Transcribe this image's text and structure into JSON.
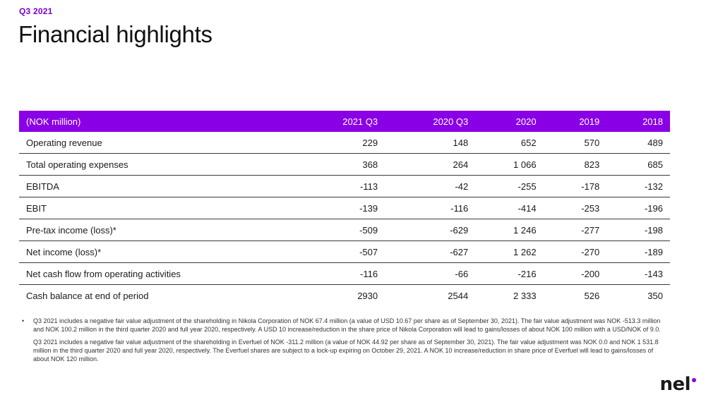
{
  "header": {
    "eyebrow": "Q3 2021",
    "title": "Financial highlights"
  },
  "table": {
    "columns": [
      "(NOK million)",
      "2021 Q3",
      "2020 Q3",
      "2020",
      "2019",
      "2018"
    ],
    "rows": [
      {
        "label": "Operating revenue",
        "values": [
          "229",
          "148",
          "652",
          "570",
          "489"
        ]
      },
      {
        "label": "Total operating expenses",
        "values": [
          "368",
          "264",
          "1 066",
          "823",
          "685"
        ]
      },
      {
        "label": "EBITDA",
        "values": [
          "-113",
          "-42",
          "-255",
          "-178",
          "-132"
        ]
      },
      {
        "label": "EBIT",
        "values": [
          "-139",
          "-116",
          "-414",
          "-253",
          "-196"
        ]
      },
      {
        "label": "Pre-tax income (loss)*",
        "values": [
          "-509",
          "-629",
          "1 246",
          "-277",
          "-198"
        ]
      },
      {
        "label": "Net income (loss)*",
        "values": [
          "-507",
          "-627",
          "1 262",
          "-270",
          "-189"
        ]
      },
      {
        "label": "Net cash flow from operating activities",
        "values": [
          "-116",
          "-66",
          "-216",
          "-200",
          "-143"
        ]
      },
      {
        "label": "Cash balance at end of period",
        "values": [
          "2930",
          "2544",
          "2 333",
          "526",
          "350"
        ]
      }
    ]
  },
  "notes": {
    "bullet": "•",
    "items": [
      "Q3 2021 includes a negative fair value adjustment of the shareholding in Nikola Corporation of NOK 67.4 million (a value of USD 10.67 per share as of September 30, 2021). The fair value adjustment was NOK -513.3 million and NOK 100.2 million in the third quarter 2020 and full year 2020, respectively. A USD 10 increase/reduction in the share price of Nikola Corporation will lead to gains/losses of about NOK 100 million with a USD/NOK of 9.0.",
      "Q3 2021 includes a negative fair value adjustment of the shareholding in Everfuel of NOK -311.2 million (a value of NOK 44.92 per share as of September 30, 2021). The fair value adjustment was NOK 0.0 and NOK 1 531.8 million in the third quarter 2020 and full year 2020, respectively. The Everfuel shares are subject to a lock-up expiring on October 29, 2021. A NOK 10 increase/reduction in share price of Everfuel will lead to gains/losses of about NOK 120 million."
    ]
  },
  "logo": {
    "text": "nel",
    "accent_color": "#8a00e6"
  },
  "colors": {
    "accent": "#8a00e6",
    "eyebrow": "#7a00d4"
  }
}
